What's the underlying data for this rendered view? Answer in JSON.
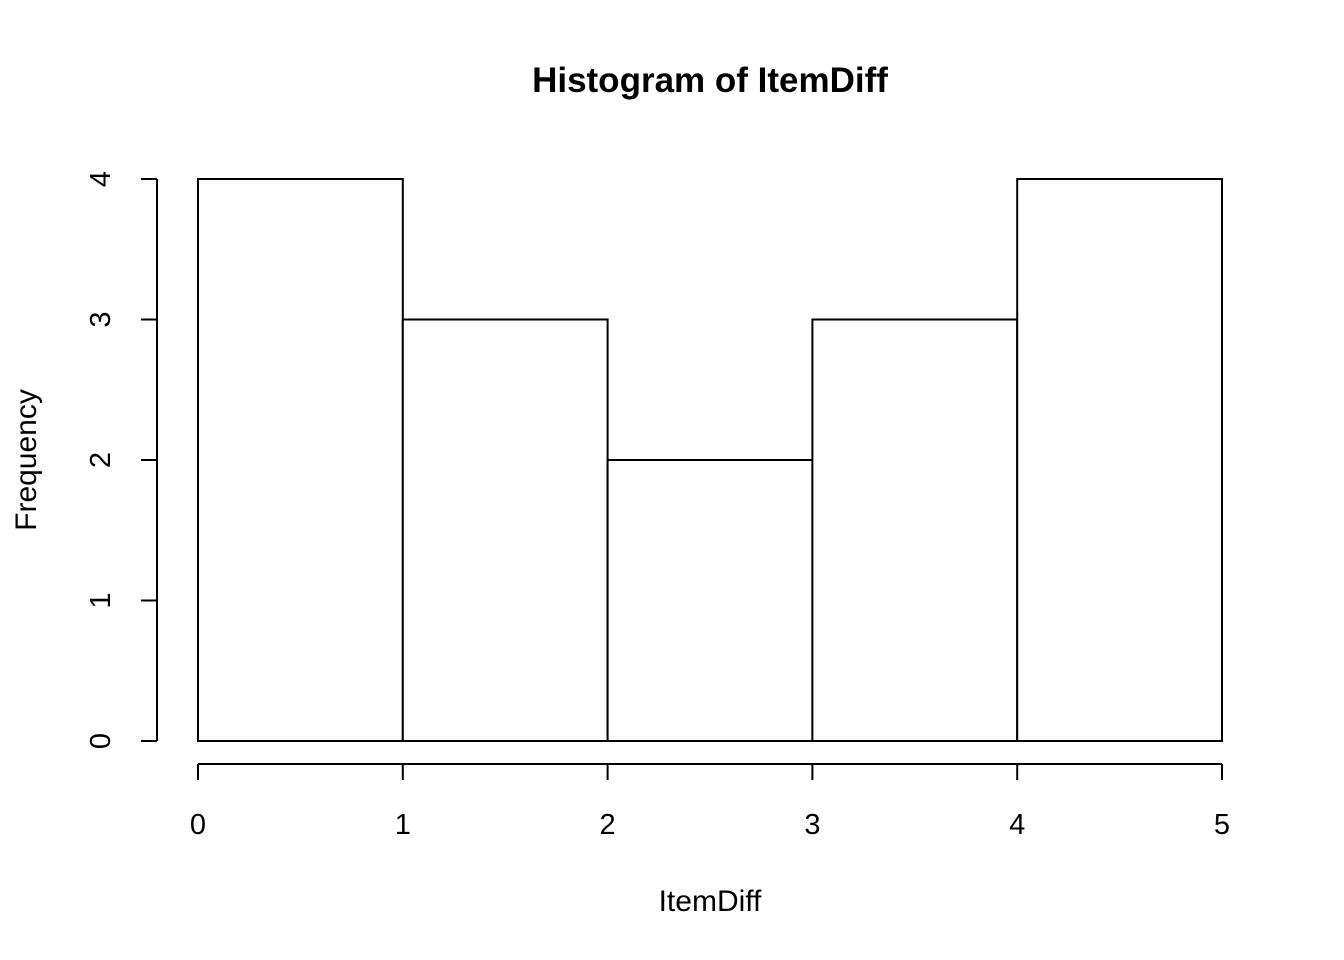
{
  "chart_data": {
    "type": "bar",
    "title": "Histogram of ItemDiff",
    "xlabel": "ItemDiff",
    "ylabel": "Frequency",
    "bins": [
      {
        "start": 0,
        "end": 1,
        "count": 4
      },
      {
        "start": 1,
        "end": 2,
        "count": 3
      },
      {
        "start": 2,
        "end": 3,
        "count": 2
      },
      {
        "start": 3,
        "end": 4,
        "count": 3
      },
      {
        "start": 4,
        "end": 5,
        "count": 4
      }
    ],
    "xlim": [
      0,
      5
    ],
    "ylim": [
      0,
      4
    ],
    "xticks": [
      "0",
      "1",
      "2",
      "3",
      "4",
      "5"
    ],
    "yticks": [
      "0",
      "1",
      "2",
      "3",
      "4"
    ],
    "grid": false,
    "bar_fill": "#ffffff",
    "bar_stroke": "#000000"
  }
}
